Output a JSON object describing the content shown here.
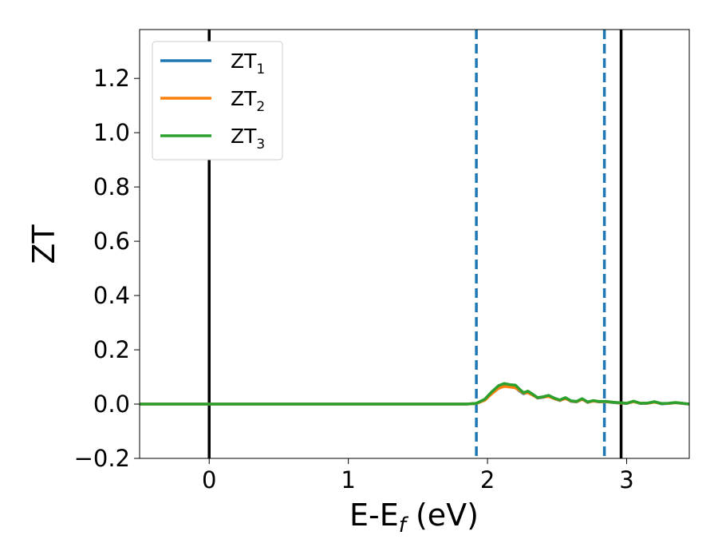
{
  "chart_data": {
    "type": "line",
    "xlabel": {
      "main": "E-E",
      "sub": "f",
      "unit": " (eV)"
    },
    "ylabel": "ZT",
    "xlim": [
      -0.5,
      3.45
    ],
    "ylim": [
      -0.2,
      1.38
    ],
    "xticks": [
      {
        "value": 0,
        "label": "0"
      },
      {
        "value": 1,
        "label": "1"
      },
      {
        "value": 2,
        "label": "2"
      },
      {
        "value": 3,
        "label": "3"
      }
    ],
    "yticks": [
      {
        "value": -0.2,
        "label": "−0.2"
      },
      {
        "value": 0.0,
        "label": "0.0"
      },
      {
        "value": 0.2,
        "label": "0.2"
      },
      {
        "value": 0.4,
        "label": "0.4"
      },
      {
        "value": 0.6,
        "label": "0.6"
      },
      {
        "value": 0.8,
        "label": "0.8"
      },
      {
        "value": 1.0,
        "label": "1.0"
      },
      {
        "value": 1.2,
        "label": "1.2"
      }
    ],
    "grid": false,
    "legend_position": "top-left",
    "series": [
      {
        "name": "ZT",
        "sub": "1",
        "color": "#1f77b4",
        "x": [
          -0.5,
          1.85,
          1.92,
          1.98,
          2.03,
          2.08,
          2.12,
          2.16,
          2.2,
          2.23,
          2.26,
          2.29,
          2.32,
          2.36,
          2.4,
          2.44,
          2.48,
          2.52,
          2.56,
          2.6,
          2.64,
          2.68,
          2.72,
          2.76,
          2.8,
          2.85,
          2.9,
          2.95,
          3.0,
          3.05,
          3.1,
          3.15,
          3.2,
          3.25,
          3.3,
          3.35,
          3.45
        ],
        "y": [
          0.0,
          0.0,
          0.002,
          0.015,
          0.04,
          0.062,
          0.07,
          0.066,
          0.062,
          0.048,
          0.038,
          0.044,
          0.036,
          0.022,
          0.025,
          0.03,
          0.02,
          0.013,
          0.022,
          0.01,
          0.008,
          0.018,
          0.006,
          0.012,
          0.008,
          0.009,
          0.006,
          0.004,
          0.002,
          0.01,
          0.002,
          0.003,
          0.008,
          0.001,
          0.002,
          0.005,
          0.0
        ]
      },
      {
        "name": "ZT",
        "sub": "2",
        "color": "#ff7f0e",
        "x": [
          -0.5,
          1.85,
          1.92,
          1.98,
          2.03,
          2.08,
          2.12,
          2.16,
          2.2,
          2.23,
          2.26,
          2.29,
          2.32,
          2.36,
          2.4,
          2.44,
          2.48,
          2.52,
          2.56,
          2.6,
          2.64,
          2.68,
          2.72,
          2.76,
          2.8,
          2.85,
          2.9,
          2.95,
          3.0,
          3.05,
          3.1,
          3.15,
          3.2,
          3.25,
          3.3,
          3.35,
          3.45
        ],
        "y": [
          0.0,
          0.0,
          0.002,
          0.014,
          0.038,
          0.058,
          0.065,
          0.063,
          0.06,
          0.05,
          0.04,
          0.042,
          0.034,
          0.023,
          0.026,
          0.028,
          0.02,
          0.014,
          0.02,
          0.011,
          0.009,
          0.017,
          0.007,
          0.011,
          0.009,
          0.009,
          0.007,
          0.004,
          0.003,
          0.009,
          0.003,
          0.003,
          0.007,
          0.002,
          0.002,
          0.005,
          0.0
        ]
      },
      {
        "name": "ZT",
        "sub": "3",
        "color": "#2ca02c",
        "x": [
          -0.5,
          1.85,
          1.92,
          1.98,
          2.03,
          2.08,
          2.12,
          2.16,
          2.2,
          2.23,
          2.26,
          2.29,
          2.32,
          2.36,
          2.4,
          2.44,
          2.48,
          2.52,
          2.56,
          2.6,
          2.64,
          2.68,
          2.72,
          2.76,
          2.8,
          2.85,
          2.9,
          2.95,
          3.0,
          3.05,
          3.1,
          3.15,
          3.2,
          3.25,
          3.3,
          3.35,
          3.45
        ],
        "y": [
          0.0,
          0.0,
          0.003,
          0.018,
          0.045,
          0.068,
          0.076,
          0.072,
          0.07,
          0.055,
          0.042,
          0.048,
          0.038,
          0.024,
          0.027,
          0.032,
          0.022,
          0.015,
          0.024,
          0.012,
          0.01,
          0.02,
          0.008,
          0.013,
          0.01,
          0.01,
          0.007,
          0.005,
          0.003,
          0.011,
          0.003,
          0.004,
          0.009,
          0.002,
          0.003,
          0.006,
          0.0
        ]
      }
    ],
    "vlines": [
      {
        "x": 0.0,
        "style": "solid",
        "color": "#000000"
      },
      {
        "x": 1.92,
        "style": "dashed",
        "color": "#1f77b4"
      },
      {
        "x": 2.84,
        "style": "dashed",
        "color": "#1f77b4"
      },
      {
        "x": 2.96,
        "style": "solid",
        "color": "#000000"
      }
    ]
  }
}
